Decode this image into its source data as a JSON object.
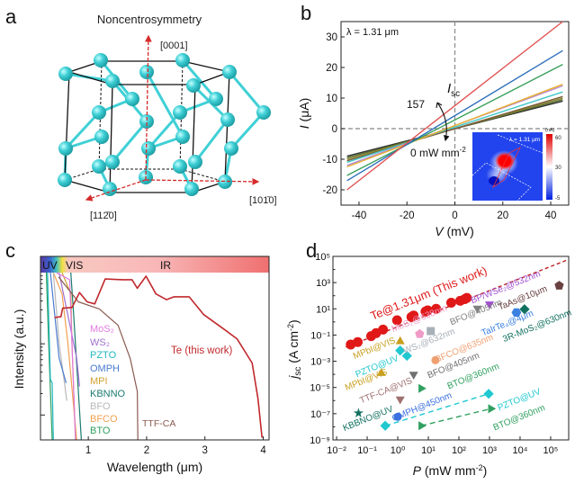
{
  "panels": {
    "a": {
      "letter": "a",
      "title": "Noncentrosymmetry",
      "axis_0001": "[0001]",
      "axis_1010": "[10Ā1̄0]",
      "axis_1120": "[11̄2̄0]",
      "axis_1010_text": "[101̄0]",
      "axis_1120_text": "[112̄0]",
      "atom_color": "#3fd0d6",
      "axis_color": "#d62a2a"
    },
    "b": {
      "letter": "b"
    },
    "c": {
      "letter": "c"
    },
    "d": {
      "letter": "d"
    }
  },
  "chart_data": [
    {
      "panel": "b",
      "type": "line",
      "xlabel": {
        "var": "V",
        "unit": " (mV)"
      },
      "ylabel": {
        "var": "I",
        "unit": " (μA)"
      },
      "xlim": [
        -47.5,
        47.5
      ],
      "ylim": [
        -25,
        35
      ],
      "xticks": [
        -40,
        -20,
        0,
        20,
        40
      ],
      "yticks": [
        -20,
        -10,
        0,
        10,
        20,
        30
      ],
      "annotations": {
        "wavelength": "λ = 1.31 μm",
        "isc_var": "I",
        "isc_sub": "sc",
        "max_power": "157",
        "min_power": "0 mW mm",
        "min_power_sup": "-2"
      },
      "inset": {
        "wavelength": "λ = 1.31 μm",
        "unit": "(nA)",
        "colorbar_ticks": [
          "60",
          "30",
          "-5"
        ]
      },
      "series": [
        {
          "x": [
            -45,
            45
          ],
          "y": [
            -20,
            35
          ],
          "color": "#e05252"
        },
        {
          "x": [
            -45,
            45
          ],
          "y": [
            -17,
            25.5
          ],
          "color": "#2a6ebb"
        },
        {
          "x": [
            -45,
            45
          ],
          "y": [
            -15.3,
            21
          ],
          "color": "#3aa05a"
        },
        {
          "x": [
            -45,
            45
          ],
          "y": [
            -12.5,
            14.5
          ],
          "color": "#e8b030"
        },
        {
          "x": [
            -45,
            45
          ],
          "y": [
            -12,
            14
          ],
          "color": "#b888d0"
        },
        {
          "x": [
            -45,
            45
          ],
          "y": [
            -11,
            12
          ],
          "color": "#40c8c8"
        },
        {
          "x": [
            -45,
            45
          ],
          "y": [
            -10.5,
            10.5
          ],
          "color": "#7a5a3a"
        },
        {
          "x": [
            -45,
            45
          ],
          "y": [
            -10,
            10
          ],
          "color": "#8a8a30"
        },
        {
          "x": [
            -45,
            45
          ],
          "y": [
            -9.5,
            9.5
          ],
          "color": "#556b2f"
        },
        {
          "x": [
            -45,
            45
          ],
          "y": [
            -9,
            9
          ],
          "color": "#303030"
        }
      ]
    },
    {
      "panel": "c",
      "type": "line",
      "xlabel": "Wavelength (μm)",
      "ylabel": "Intensity (a.u.)",
      "xlim": [
        0.18,
        4.1
      ],
      "ylim_log10": [
        -2.35,
        0
      ],
      "yscale": "log",
      "xticks": [
        1,
        2,
        3,
        4
      ],
      "bands": [
        {
          "label": "UV"
        },
        {
          "label": "VIS"
        },
        {
          "label": "IR"
        }
      ],
      "series": [
        {
          "name": "Te (this work)",
          "color": "#c0282d",
          "x": [
            0.42,
            0.53,
            0.56,
            0.72,
            0.85,
            0.98,
            1.11,
            1.29,
            1.59,
            1.75,
            1.84,
            1.99,
            2.16,
            2.34,
            2.47,
            2.73,
            2.98,
            3.3,
            3.55,
            3.81,
            3.91,
            3.98
          ],
          "log10_y": [
            -0.63,
            -0.62,
            -0.5,
            -0.49,
            -0.28,
            -0.41,
            -0.44,
            -0.09,
            -0.1,
            -0.1,
            -0.22,
            -0.05,
            -0.3,
            -0.38,
            -0.34,
            -0.34,
            -0.59,
            -0.78,
            -0.93,
            -1.27,
            -1.77,
            -2.32
          ]
        },
        {
          "name": "TTF-CA",
          "color": "#8a5a50",
          "x": [
            0.49,
            0.83,
            1.19,
            1.51,
            1.72,
            1.84,
            1.85
          ],
          "log10_y": [
            -0.06,
            -0.41,
            -0.51,
            -0.74,
            -1.21,
            -1.67,
            -2.35
          ]
        },
        {
          "name": "MoS₂",
          "color": "#e07ae0",
          "x": [
            0.45,
            0.68,
            0.72,
            0.78
          ],
          "log10_y": [
            0,
            -0.1,
            -1.0,
            -2.35
          ]
        },
        {
          "name": "WS₂",
          "color": "#a070d0",
          "x": [
            0.5,
            0.6,
            0.8,
            0.85
          ],
          "log10_y": [
            0,
            -0.4,
            -1.2,
            -1.6
          ]
        },
        {
          "name": "PZTO",
          "color": "#20b8c0",
          "x": [
            0.3,
            0.35,
            0.38,
            0.4
          ],
          "log10_y": [
            0,
            -1.5,
            -1.55,
            -2.35
          ]
        },
        {
          "name": "OMPH",
          "color": "#4a7ad0",
          "x": [
            0.35,
            0.45,
            0.5,
            0.62
          ],
          "log10_y": [
            0,
            -0.8,
            -1.2,
            -1.55
          ]
        },
        {
          "name": "MPI",
          "color": "#d0a030",
          "x": [
            0.55,
            0.7,
            0.72,
            0.78
          ],
          "log10_y": [
            0,
            -0.3,
            -1.0,
            -2.35
          ]
        },
        {
          "name": "KBNNO",
          "color": "#1a7a70",
          "x": [
            0.7,
            0.75,
            0.88
          ],
          "log10_y": [
            0,
            -0.6,
            -2.35
          ]
        },
        {
          "name": "BFO",
          "color": "#b8b8b8",
          "x": [
            0.4,
            0.5,
            0.6,
            0.63
          ],
          "log10_y": [
            0,
            -1.0,
            -1.6,
            -1.8
          ]
        },
        {
          "name": "BFCO",
          "color": "#f0a050",
          "x": [
            0.4,
            0.55,
            0.65,
            0.8
          ],
          "log10_y": [
            0,
            -0.3,
            -1.0,
            -2.35
          ]
        },
        {
          "name": "BTO",
          "color": "#30a060",
          "x": [
            0.28,
            0.32,
            0.38
          ],
          "log10_y": [
            0,
            -1.0,
            -2.35
          ]
        }
      ]
    },
    {
      "panel": "d",
      "type": "scatter",
      "xscale": "log",
      "yscale": "log",
      "xlabel": {
        "var": "P",
        "unit": " (mW mm",
        "sup": "-2",
        "close": ")"
      },
      "ylabel": {
        "var": "j",
        "sub": "sc",
        "unit": " (A cm",
        "sup": "-2",
        "close": ")"
      },
      "xlim_log10": [
        -2.12,
        5.59
      ],
      "ylim_log10": [
        -9,
        5
      ],
      "xticks": [
        "10⁻²",
        "10⁻¹",
        "10⁰",
        "10¹",
        "10²",
        "10³",
        "10⁴",
        "10⁵"
      ],
      "yticks": [
        "10⁻⁹",
        "10⁻⁷",
        "10⁻⁵",
        "10⁻³",
        "10⁻¹",
        "10¹",
        "10³",
        "10⁵"
      ],
      "series": [
        {
          "name": "Te@1.31μm (This work)",
          "color": "#e01818",
          "marker": "circle",
          "fit": true,
          "fit_line": [
            [
              0.02,
              0.012
            ],
            [
              390000,
              59000
            ]
          ],
          "x": [
            0.029,
            0.049,
            0.135,
            0.195,
            0.33,
            0.95,
            2.8,
            3.3,
            8.1,
            9.5,
            18,
            56,
            110,
            155,
            182
          ],
          "y": [
            0.019,
            0.029,
            0.083,
            0.14,
            0.26,
            1.35,
            2.4,
            3.1,
            6.2,
            7.6,
            10,
            29,
            41,
            55,
            68
          ]
        },
        {
          "name": "MoS₂@638nm",
          "color": "#f09ac8",
          "marker": "pentagon",
          "x": [
            5.2
          ],
          "y": [
            0.12
          ]
        },
        {
          "name": "WS₂@632nm",
          "color": "#a8b0b8",
          "marker": "square",
          "x": [
            12
          ],
          "y": [
            0.2
          ]
        },
        {
          "name": "BFO@405nm",
          "color": "#808080",
          "marker": "tri-down",
          "x": [
            400
          ],
          "y": [
            11
          ]
        },
        {
          "name": "BP/WSe₂@532nm",
          "color": "#a050d0",
          "marker": "tri-down",
          "x": [
            1000
          ],
          "y": [
            23
          ]
        },
        {
          "name": "TaAs@10μm",
          "color": "#6a4040",
          "marker": "pentagon",
          "x": [
            190000
          ],
          "y": [
            590
          ]
        },
        {
          "name": "TaIrTe₄@4μm",
          "color": "#3a80e0",
          "marker": "hexagon",
          "x": [
            7600
          ],
          "y": [
            5.2
          ]
        },
        {
          "name": "3R-MoS₂@630nm",
          "color": "#107060",
          "marker": "diamond",
          "x": [
            14000
          ],
          "y": [
            9.3
          ]
        },
        {
          "name": "MPbI@VIS",
          "color": "#c8a020",
          "marker": "tri-up",
          "x": [
            1.2
          ],
          "y": [
            0.032
          ]
        },
        {
          "name": "PZTO@UV",
          "color": "#20c8d0",
          "marker": "diamond",
          "x": [
            1.2,
            2.0
          ],
          "y": [
            0.0066,
            0.0026
          ]
        },
        {
          "name": "BFCO@635nm",
          "color": "#f0a070",
          "marker": "circle",
          "x": [
            17
          ],
          "y": [
            0.0012
          ]
        },
        {
          "name": "MPbI@VIS",
          "color": "#c8a020",
          "marker": "tri-up",
          "x": [
            0.29
          ],
          "y": [
            0.00012
          ]
        },
        {
          "name": "BFO@405nm",
          "color": "#707070",
          "marker": "tri-down",
          "x": [
            3.3
          ],
          "y": [
            0.0001
          ]
        },
        {
          "name": "BTO@360nm",
          "color": "#30a060",
          "marker": "tri-right",
          "x": [
            5.8
          ],
          "y": [
            8.5e-06
          ]
        },
        {
          "name": "TTF-CA@VIS",
          "color": "#a07070",
          "marker": "tri-down",
          "x": [
            1.2
          ],
          "y": [
            1.3e-06
          ]
        },
        {
          "name": "KBBNO@UV",
          "color": "#107060",
          "marker": "star",
          "x": [
            0.052
          ],
          "y": [
            1.1e-07
          ]
        },
        {
          "name": "OMPH@450nm",
          "color": "#3a70e0",
          "marker": "circle",
          "x": [
            1.0
          ],
          "y": [
            5.8e-08
          ]
        },
        {
          "name": "PZTO@UV",
          "color": "#20c8d0",
          "marker": "diamond",
          "fit": true,
          "x": [
            0.39,
            940
          ],
          "y": [
            1.2e-08,
            3.3e-06
          ]
        },
        {
          "name": "BTO@360nm",
          "color": "#30a060",
          "marker": "tri-right",
          "fit": true,
          "x": [
            5.8,
            1100
          ],
          "y": [
            1.2e-08,
            2.4e-07
          ]
        }
      ]
    }
  ]
}
